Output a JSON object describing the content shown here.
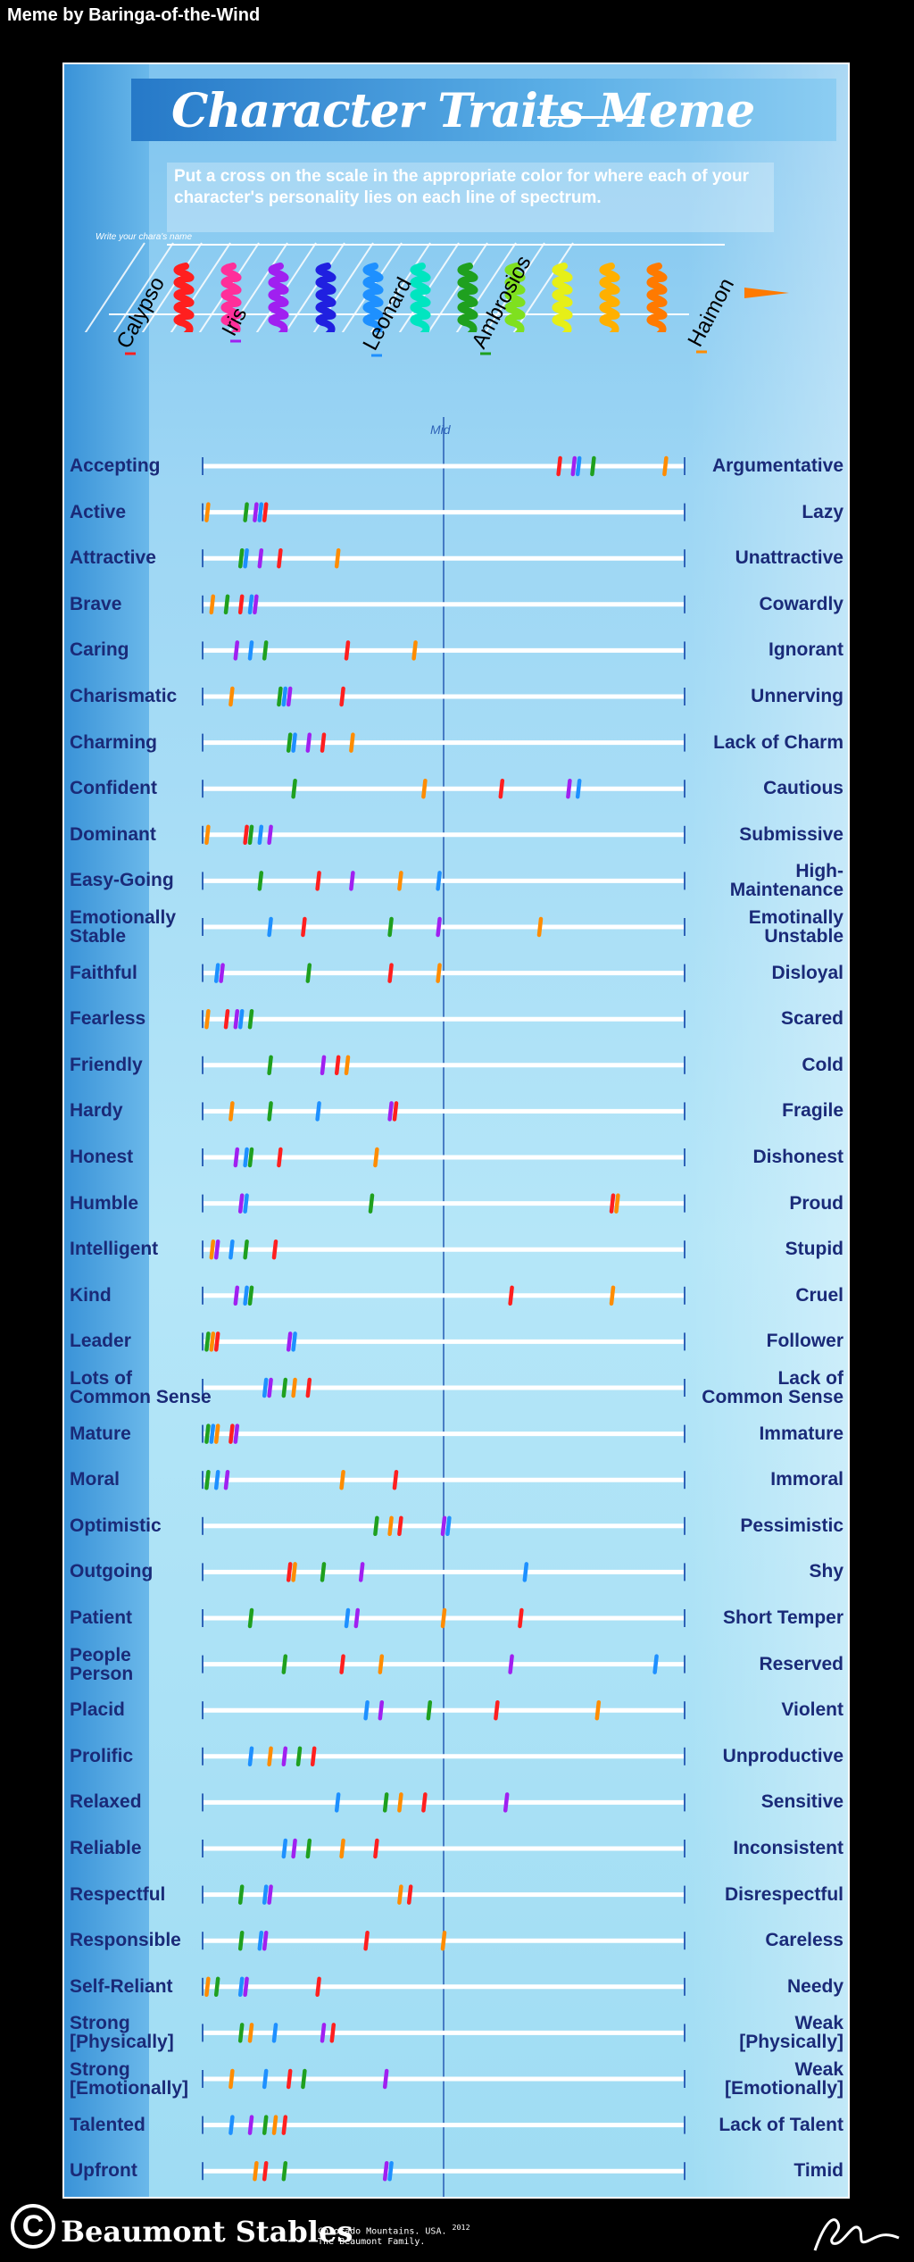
{
  "credit": "Meme by Baringa-of-the-Wind",
  "title": "Character Traits Meme",
  "instructions": "Put a cross on the scale in the appropriate color for where each of your character's personality lies on each line of spectrum.",
  "name_hint": "Write your chara's name",
  "mid_label": "Mid",
  "characters": [
    {
      "name": "Calypso",
      "color": "#ff1f1f"
    },
    {
      "name": "Iris",
      "color": "#a020f0"
    },
    {
      "name": "Leonard",
      "color": "#1e90ff"
    },
    {
      "name": "Ambrosios",
      "color": "#1fa01f"
    },
    {
      "name": "Haimon",
      "color": "#ff8c00"
    }
  ],
  "palette": [
    "#ff1f1f",
    "#ff2f9a",
    "#a020f0",
    "#2020e0",
    "#1e90ff",
    "#00e5c0",
    "#1fa01f",
    "#7fe01f",
    "#e6ef18",
    "#ffb000",
    "#ff7a00"
  ],
  "chart_data": {
    "type": "scatter",
    "scale": [
      0,
      100
    ],
    "title": "Character Traits Meme",
    "traits": [
      {
        "left": "Accepting",
        "right": "Argumentative",
        "marks": [
          {
            "c": "#ff1f1f",
            "v": 74
          },
          {
            "c": "#a020f0",
            "v": 77
          },
          {
            "c": "#1e90ff",
            "v": 78
          },
          {
            "c": "#1fa01f",
            "v": 81
          },
          {
            "c": "#ff8c00",
            "v": 96
          }
        ]
      },
      {
        "left": "Active",
        "right": "Lazy",
        "marks": [
          {
            "c": "#ff8c00",
            "v": 1
          },
          {
            "c": "#1fa01f",
            "v": 9
          },
          {
            "c": "#a020f0",
            "v": 11
          },
          {
            "c": "#1e90ff",
            "v": 12
          },
          {
            "c": "#ff1f1f",
            "v": 13
          }
        ]
      },
      {
        "left": "Attractive",
        "right": "Unattractive",
        "marks": [
          {
            "c": "#1fa01f",
            "v": 8
          },
          {
            "c": "#1e90ff",
            "v": 9
          },
          {
            "c": "#a020f0",
            "v": 12
          },
          {
            "c": "#ff1f1f",
            "v": 16
          },
          {
            "c": "#ff8c00",
            "v": 28
          }
        ]
      },
      {
        "left": "Brave",
        "right": "Cowardly",
        "marks": [
          {
            "c": "#ff8c00",
            "v": 2
          },
          {
            "c": "#1fa01f",
            "v": 5
          },
          {
            "c": "#ff1f1f",
            "v": 8
          },
          {
            "c": "#1e90ff",
            "v": 10
          },
          {
            "c": "#a020f0",
            "v": 11
          }
        ]
      },
      {
        "left": "Caring",
        "right": "Ignorant",
        "marks": [
          {
            "c": "#a020f0",
            "v": 7
          },
          {
            "c": "#1e90ff",
            "v": 10
          },
          {
            "c": "#1fa01f",
            "v": 13
          },
          {
            "c": "#ff1f1f",
            "v": 30
          },
          {
            "c": "#ff8c00",
            "v": 44
          }
        ]
      },
      {
        "left": "Charismatic",
        "right": "Unnerving",
        "marks": [
          {
            "c": "#ff8c00",
            "v": 6
          },
          {
            "c": "#1fa01f",
            "v": 16
          },
          {
            "c": "#1e90ff",
            "v": 17
          },
          {
            "c": "#a020f0",
            "v": 18
          },
          {
            "c": "#ff1f1f",
            "v": 29
          }
        ]
      },
      {
        "left": "Charming",
        "right": "Lack of Charm",
        "marks": [
          {
            "c": "#1fa01f",
            "v": 18
          },
          {
            "c": "#1e90ff",
            "v": 19
          },
          {
            "c": "#a020f0",
            "v": 22
          },
          {
            "c": "#ff1f1f",
            "v": 25
          },
          {
            "c": "#ff8c00",
            "v": 31
          }
        ]
      },
      {
        "left": "Confident",
        "right": "Cautious",
        "marks": [
          {
            "c": "#1fa01f",
            "v": 19
          },
          {
            "c": "#ff8c00",
            "v": 46
          },
          {
            "c": "#ff1f1f",
            "v": 62
          },
          {
            "c": "#a020f0",
            "v": 76
          },
          {
            "c": "#1e90ff",
            "v": 78
          }
        ]
      },
      {
        "left": "Dominant",
        "right": "Submissive",
        "marks": [
          {
            "c": "#ff8c00",
            "v": 1
          },
          {
            "c": "#ff1f1f",
            "v": 9
          },
          {
            "c": "#1fa01f",
            "v": 10
          },
          {
            "c": "#1e90ff",
            "v": 12
          },
          {
            "c": "#a020f0",
            "v": 14
          }
        ]
      },
      {
        "left": "Easy-Going",
        "right": "High-\nMaintenance",
        "marks": [
          {
            "c": "#1fa01f",
            "v": 12
          },
          {
            "c": "#ff1f1f",
            "v": 24
          },
          {
            "c": "#a020f0",
            "v": 31
          },
          {
            "c": "#ff8c00",
            "v": 41
          },
          {
            "c": "#1e90ff",
            "v": 49
          }
        ]
      },
      {
        "left": "Emotionally\nStable",
        "right": "Emotinally\nUnstable",
        "marks": [
          {
            "c": "#1e90ff",
            "v": 14
          },
          {
            "c": "#ff1f1f",
            "v": 21
          },
          {
            "c": "#1fa01f",
            "v": 39
          },
          {
            "c": "#a020f0",
            "v": 49
          },
          {
            "c": "#ff8c00",
            "v": 70
          }
        ]
      },
      {
        "left": "Faithful",
        "right": "Disloyal",
        "marks": [
          {
            "c": "#1e90ff",
            "v": 3
          },
          {
            "c": "#a020f0",
            "v": 4
          },
          {
            "c": "#1fa01f",
            "v": 22
          },
          {
            "c": "#ff1f1f",
            "v": 39
          },
          {
            "c": "#ff8c00",
            "v": 49
          }
        ]
      },
      {
        "left": "Fearless",
        "right": "Scared",
        "marks": [
          {
            "c": "#ff8c00",
            "v": 1
          },
          {
            "c": "#ff1f1f",
            "v": 5
          },
          {
            "c": "#a020f0",
            "v": 7
          },
          {
            "c": "#1e90ff",
            "v": 8
          },
          {
            "c": "#1fa01f",
            "v": 10
          }
        ]
      },
      {
        "left": "Friendly",
        "right": "Cold",
        "marks": [
          {
            "c": "#1fa01f",
            "v": 14
          },
          {
            "c": "#a020f0",
            "v": 25
          },
          {
            "c": "#ff1f1f",
            "v": 28
          },
          {
            "c": "#ff8c00",
            "v": 30
          }
        ]
      },
      {
        "left": "Hardy",
        "right": "Fragile",
        "marks": [
          {
            "c": "#ff8c00",
            "v": 6
          },
          {
            "c": "#1fa01f",
            "v": 14
          },
          {
            "c": "#1e90ff",
            "v": 24
          },
          {
            "c": "#a020f0",
            "v": 39
          },
          {
            "c": "#ff1f1f",
            "v": 40
          }
        ]
      },
      {
        "left": "Honest",
        "right": "Dishonest",
        "marks": [
          {
            "c": "#a020f0",
            "v": 7
          },
          {
            "c": "#1e90ff",
            "v": 9
          },
          {
            "c": "#1fa01f",
            "v": 10
          },
          {
            "c": "#ff1f1f",
            "v": 16
          },
          {
            "c": "#ff8c00",
            "v": 36
          }
        ]
      },
      {
        "left": "Humble",
        "right": "Proud",
        "marks": [
          {
            "c": "#a020f0",
            "v": 8
          },
          {
            "c": "#1e90ff",
            "v": 9
          },
          {
            "c": "#1fa01f",
            "v": 35
          },
          {
            "c": "#ff1f1f",
            "v": 85
          },
          {
            "c": "#ff8c00",
            "v": 86
          }
        ]
      },
      {
        "left": "Intelligent",
        "right": "Stupid",
        "marks": [
          {
            "c": "#ff8c00",
            "v": 2
          },
          {
            "c": "#a020f0",
            "v": 3
          },
          {
            "c": "#1e90ff",
            "v": 6
          },
          {
            "c": "#1fa01f",
            "v": 9
          },
          {
            "c": "#ff1f1f",
            "v": 15
          }
        ]
      },
      {
        "left": "Kind",
        "right": "Cruel",
        "marks": [
          {
            "c": "#a020f0",
            "v": 7
          },
          {
            "c": "#1e90ff",
            "v": 9
          },
          {
            "c": "#1fa01f",
            "v": 10
          },
          {
            "c": "#ff1f1f",
            "v": 64
          },
          {
            "c": "#ff8c00",
            "v": 85
          }
        ]
      },
      {
        "left": "Leader",
        "right": "Follower",
        "marks": [
          {
            "c": "#1fa01f",
            "v": 1
          },
          {
            "c": "#ff8c00",
            "v": 2
          },
          {
            "c": "#ff1f1f",
            "v": 3
          },
          {
            "c": "#a020f0",
            "v": 18
          },
          {
            "c": "#1e90ff",
            "v": 19
          }
        ]
      },
      {
        "left": "Lots of\nCommon Sense",
        "right": "Lack of\nCommon Sense",
        "marks": [
          {
            "c": "#1e90ff",
            "v": 13
          },
          {
            "c": "#a020f0",
            "v": 14
          },
          {
            "c": "#1fa01f",
            "v": 17
          },
          {
            "c": "#ff8c00",
            "v": 19
          },
          {
            "c": "#ff1f1f",
            "v": 22
          }
        ]
      },
      {
        "left": "Mature",
        "right": "Immature",
        "marks": [
          {
            "c": "#1fa01f",
            "v": 1
          },
          {
            "c": "#1e90ff",
            "v": 2
          },
          {
            "c": "#ff8c00",
            "v": 3
          },
          {
            "c": "#ff1f1f",
            "v": 6
          },
          {
            "c": "#a020f0",
            "v": 7
          }
        ]
      },
      {
        "left": "Moral",
        "right": "Immoral",
        "marks": [
          {
            "c": "#1fa01f",
            "v": 1
          },
          {
            "c": "#1e90ff",
            "v": 3
          },
          {
            "c": "#a020f0",
            "v": 5
          },
          {
            "c": "#ff8c00",
            "v": 29
          },
          {
            "c": "#ff1f1f",
            "v": 40
          }
        ]
      },
      {
        "left": "Optimistic",
        "right": "Pessimistic",
        "marks": [
          {
            "c": "#1fa01f",
            "v": 36
          },
          {
            "c": "#ff8c00",
            "v": 39
          },
          {
            "c": "#ff1f1f",
            "v": 41
          },
          {
            "c": "#a020f0",
            "v": 50
          },
          {
            "c": "#1e90ff",
            "v": 51
          }
        ]
      },
      {
        "left": "Outgoing",
        "right": "Shy",
        "marks": [
          {
            "c": "#ff1f1f",
            "v": 18
          },
          {
            "c": "#ff8c00",
            "v": 19
          },
          {
            "c": "#1fa01f",
            "v": 25
          },
          {
            "c": "#a020f0",
            "v": 33
          },
          {
            "c": "#1e90ff",
            "v": 67
          }
        ]
      },
      {
        "left": "Patient",
        "right": "Short Temper",
        "marks": [
          {
            "c": "#1fa01f",
            "v": 10
          },
          {
            "c": "#1e90ff",
            "v": 30
          },
          {
            "c": "#a020f0",
            "v": 32
          },
          {
            "c": "#ff8c00",
            "v": 50
          },
          {
            "c": "#ff1f1f",
            "v": 66
          }
        ]
      },
      {
        "left": "People\nPerson",
        "right": "Reserved",
        "marks": [
          {
            "c": "#1fa01f",
            "v": 17
          },
          {
            "c": "#ff1f1f",
            "v": 29
          },
          {
            "c": "#ff8c00",
            "v": 37
          },
          {
            "c": "#a020f0",
            "v": 64
          },
          {
            "c": "#1e90ff",
            "v": 94
          }
        ]
      },
      {
        "left": "Placid",
        "right": "Violent",
        "marks": [
          {
            "c": "#1e90ff",
            "v": 34
          },
          {
            "c": "#a020f0",
            "v": 37
          },
          {
            "c": "#1fa01f",
            "v": 47
          },
          {
            "c": "#ff1f1f",
            "v": 61
          },
          {
            "c": "#ff8c00",
            "v": 82
          }
        ]
      },
      {
        "left": "Prolific",
        "right": "Unproductive",
        "marks": [
          {
            "c": "#1e90ff",
            "v": 10
          },
          {
            "c": "#ff8c00",
            "v": 14
          },
          {
            "c": "#a020f0",
            "v": 17
          },
          {
            "c": "#1fa01f",
            "v": 20
          },
          {
            "c": "#ff1f1f",
            "v": 23
          }
        ]
      },
      {
        "left": "Relaxed",
        "right": "Sensitive",
        "marks": [
          {
            "c": "#1e90ff",
            "v": 28
          },
          {
            "c": "#1fa01f",
            "v": 38
          },
          {
            "c": "#ff8c00",
            "v": 41
          },
          {
            "c": "#ff1f1f",
            "v": 46
          },
          {
            "c": "#a020f0",
            "v": 63
          }
        ]
      },
      {
        "left": "Reliable",
        "right": "Inconsistent",
        "marks": [
          {
            "c": "#1e90ff",
            "v": 17
          },
          {
            "c": "#a020f0",
            "v": 19
          },
          {
            "c": "#1fa01f",
            "v": 22
          },
          {
            "c": "#ff8c00",
            "v": 29
          },
          {
            "c": "#ff1f1f",
            "v": 36
          }
        ]
      },
      {
        "left": "Respectful",
        "right": "Disrespectful",
        "marks": [
          {
            "c": "#1fa01f",
            "v": 8
          },
          {
            "c": "#1e90ff",
            "v": 13
          },
          {
            "c": "#a020f0",
            "v": 14
          },
          {
            "c": "#ff8c00",
            "v": 41
          },
          {
            "c": "#ff1f1f",
            "v": 43
          }
        ]
      },
      {
        "left": "Responsible",
        "right": "Careless",
        "marks": [
          {
            "c": "#1fa01f",
            "v": 8
          },
          {
            "c": "#1e90ff",
            "v": 12
          },
          {
            "c": "#a020f0",
            "v": 13
          },
          {
            "c": "#ff1f1f",
            "v": 34
          },
          {
            "c": "#ff8c00",
            "v": 50
          }
        ]
      },
      {
        "left": "Self-Reliant",
        "right": "Needy",
        "marks": [
          {
            "c": "#ff8c00",
            "v": 1
          },
          {
            "c": "#1fa01f",
            "v": 3
          },
          {
            "c": "#1e90ff",
            "v": 8
          },
          {
            "c": "#a020f0",
            "v": 9
          },
          {
            "c": "#ff1f1f",
            "v": 24
          }
        ]
      },
      {
        "left": "Strong\n[Physically]",
        "right": "Weak\n[Physically]",
        "marks": [
          {
            "c": "#1fa01f",
            "v": 8
          },
          {
            "c": "#ff8c00",
            "v": 10
          },
          {
            "c": "#1e90ff",
            "v": 15
          },
          {
            "c": "#a020f0",
            "v": 25
          },
          {
            "c": "#ff1f1f",
            "v": 27
          }
        ]
      },
      {
        "left": "Strong\n[Emotionally]",
        "right": "Weak\n[Emotionally]",
        "marks": [
          {
            "c": "#ff8c00",
            "v": 6
          },
          {
            "c": "#1e90ff",
            "v": 13
          },
          {
            "c": "#ff1f1f",
            "v": 18
          },
          {
            "c": "#1fa01f",
            "v": 21
          },
          {
            "c": "#a020f0",
            "v": 38
          }
        ]
      },
      {
        "left": "Talented",
        "right": "Lack of Talent",
        "marks": [
          {
            "c": "#1e90ff",
            "v": 6
          },
          {
            "c": "#a020f0",
            "v": 10
          },
          {
            "c": "#1fa01f",
            "v": 13
          },
          {
            "c": "#ff8c00",
            "v": 15
          },
          {
            "c": "#ff1f1f",
            "v": 17
          }
        ]
      },
      {
        "left": "Upfront",
        "right": "Timid",
        "marks": [
          {
            "c": "#ff8c00",
            "v": 11
          },
          {
            "c": "#ff1f1f",
            "v": 13
          },
          {
            "c": "#1fa01f",
            "v": 17
          },
          {
            "c": "#a020f0",
            "v": 38
          },
          {
            "c": "#1e90ff",
            "v": 39
          }
        ]
      }
    ]
  },
  "footer": {
    "copyright_symbol": "C",
    "brand": "Beaumont Stables",
    "place": "Colorado Mountains. USA.",
    "year": "2012",
    "family": "The Beaumont Family."
  }
}
